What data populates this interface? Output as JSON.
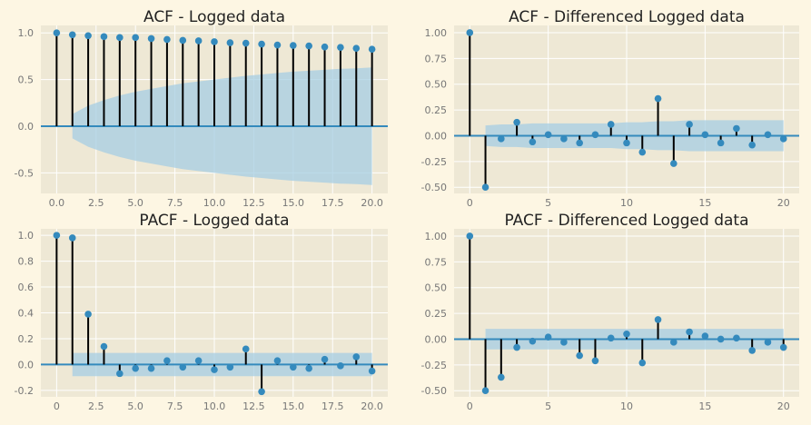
{
  "colors": {
    "page_bg": "#fdf6e3",
    "panel_bg": "#eee8d5",
    "grid": "#ffffff",
    "marker": "#348ABD",
    "stem": "#000000",
    "band": "#A6CEE3"
  },
  "chart_data": [
    {
      "type": "scatter",
      "title": "ACF - Logged data",
      "x": [
        0,
        1,
        2,
        3,
        4,
        5,
        6,
        7,
        8,
        9,
        10,
        11,
        12,
        13,
        14,
        15,
        16,
        17,
        18,
        19,
        20
      ],
      "values": [
        1.0,
        0.98,
        0.97,
        0.96,
        0.95,
        0.95,
        0.94,
        0.93,
        0.92,
        0.915,
        0.905,
        0.895,
        0.89,
        0.88,
        0.87,
        0.865,
        0.86,
        0.85,
        0.845,
        0.835,
        0.825
      ],
      "confidence_band": [
        0,
        0.13,
        0.22,
        0.28,
        0.33,
        0.37,
        0.4,
        0.43,
        0.46,
        0.48,
        0.5,
        0.52,
        0.54,
        0.555,
        0.57,
        0.585,
        0.595,
        0.605,
        0.615,
        0.62,
        0.63
      ],
      "xlim": [
        -1,
        21
      ],
      "ylim": [
        -0.72,
        1.08
      ],
      "xticks": [
        "0.0",
        "2.5",
        "5.0",
        "7.5",
        "10.0",
        "12.5",
        "15.0",
        "17.5",
        "20.0"
      ],
      "yticks": [
        "1.0",
        "0.5",
        "0.0",
        "-0.5"
      ],
      "xlabel": "",
      "ylabel": ""
    },
    {
      "type": "scatter",
      "title": "ACF - Differenced Logged data",
      "x": [
        0,
        1,
        2,
        3,
        4,
        5,
        6,
        7,
        8,
        9,
        10,
        11,
        12,
        13,
        14,
        15,
        16,
        17,
        18,
        19,
        20
      ],
      "values": [
        1.0,
        -0.5,
        -0.03,
        0.13,
        -0.06,
        0.01,
        -0.03,
        -0.07,
        0.01,
        0.11,
        -0.07,
        -0.16,
        0.36,
        -0.27,
        0.11,
        0.01,
        -0.07,
        0.07,
        -0.09,
        0.01,
        -0.03
      ],
      "confidence_band": [
        0,
        0.1,
        0.11,
        0.11,
        0.12,
        0.12,
        0.12,
        0.12,
        0.12,
        0.12,
        0.13,
        0.13,
        0.14,
        0.14,
        0.15,
        0.15,
        0.15,
        0.15,
        0.15,
        0.15,
        0.15
      ],
      "xlim": [
        -1,
        21
      ],
      "ylim": [
        -0.56,
        1.07
      ],
      "xticks": [
        "0",
        "5",
        "10",
        "15",
        "20"
      ],
      "yticks": [
        "1.00",
        "0.75",
        "0.50",
        "0.25",
        "0.00",
        "-0.25",
        "-0.50"
      ],
      "xlabel": "",
      "ylabel": ""
    },
    {
      "type": "scatter",
      "title": "PACF - Logged data",
      "x": [
        0,
        1,
        2,
        3,
        4,
        5,
        6,
        7,
        8,
        9,
        10,
        11,
        12,
        13,
        14,
        15,
        16,
        17,
        18,
        19,
        20
      ],
      "values": [
        1.0,
        0.98,
        0.39,
        0.14,
        -0.07,
        -0.03,
        -0.03,
        0.03,
        -0.02,
        0.03,
        -0.04,
        -0.02,
        0.12,
        -0.21,
        0.03,
        -0.02,
        -0.03,
        0.04,
        -0.01,
        0.06,
        -0.05
      ],
      "confidence_band": [
        0,
        0.09,
        0.09,
        0.09,
        0.09,
        0.09,
        0.09,
        0.09,
        0.09,
        0.09,
        0.09,
        0.09,
        0.09,
        0.09,
        0.09,
        0.09,
        0.09,
        0.09,
        0.09,
        0.09,
        0.09
      ],
      "xlim": [
        -1,
        21
      ],
      "ylim": [
        -0.25,
        1.05
      ],
      "xticks": [
        "0",
        "2.5",
        "5.0",
        "7.5",
        "10.0",
        "12.5",
        "15.0",
        "17.5",
        "20.0"
      ],
      "yticks": [
        "1.0",
        "0.8",
        "0.6",
        "0.4",
        "0.2",
        "0.0",
        "-0.2"
      ],
      "xlabel": "",
      "ylabel": ""
    },
    {
      "type": "scatter",
      "title": "PACF - Differenced Logged data",
      "x": [
        0,
        1,
        2,
        3,
        4,
        5,
        6,
        7,
        8,
        9,
        10,
        11,
        12,
        13,
        14,
        15,
        16,
        17,
        18,
        19,
        20
      ],
      "values": [
        1.0,
        -0.5,
        -0.37,
        -0.08,
        -0.02,
        0.02,
        -0.03,
        -0.16,
        -0.21,
        0.01,
        0.05,
        -0.23,
        0.19,
        -0.03,
        0.07,
        0.03,
        0.0,
        0.01,
        -0.11,
        -0.03,
        -0.08
      ],
      "confidence_band": [
        0,
        0.1,
        0.1,
        0.1,
        0.1,
        0.1,
        0.1,
        0.1,
        0.1,
        0.1,
        0.1,
        0.1,
        0.1,
        0.1,
        0.1,
        0.1,
        0.1,
        0.1,
        0.1,
        0.1,
        0.1
      ],
      "xlim": [
        -1,
        21
      ],
      "ylim": [
        -0.56,
        1.07
      ],
      "xticks": [
        "0",
        "5",
        "10",
        "15",
        "20"
      ],
      "yticks": [
        "1.00",
        "0.75",
        "0.50",
        "0.25",
        "0.00",
        "-0.25",
        "-0.50"
      ],
      "xlabel": "",
      "ylabel": ""
    }
  ]
}
